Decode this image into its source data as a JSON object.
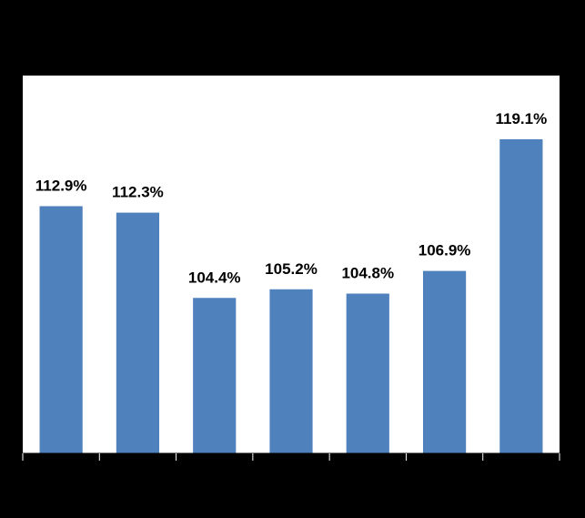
{
  "chart_data": {
    "type": "bar",
    "categories": [
      null,
      null,
      null,
      null,
      null,
      null,
      null
    ],
    "values": [
      112.9,
      112.3,
      104.4,
      105.2,
      104.8,
      106.9,
      119.1
    ],
    "value_labels": [
      "112.9%",
      "112.3%",
      "104.4%",
      "105.2%",
      "104.8%",
      "106.9%",
      "119.1%"
    ],
    "color": "#4f81bd",
    "ylim": [
      90,
      125
    ]
  }
}
